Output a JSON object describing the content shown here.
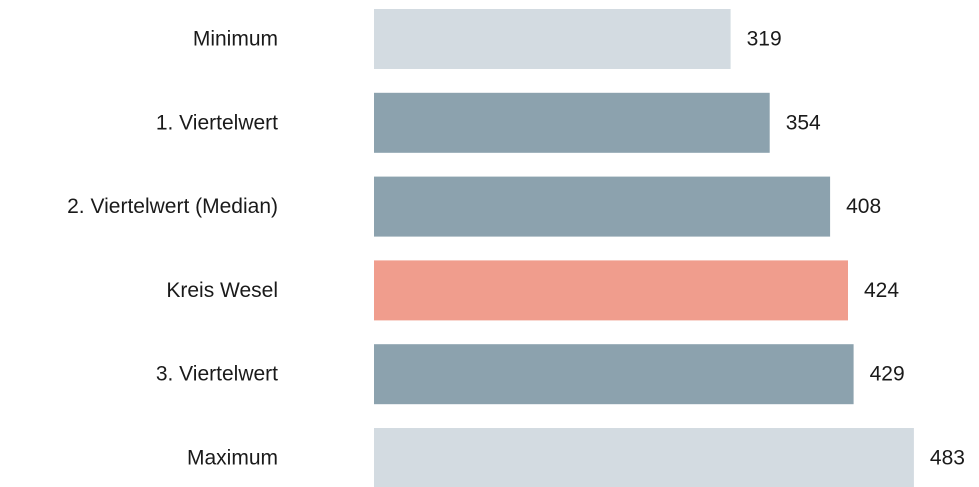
{
  "chart_data": {
    "type": "bar",
    "orientation": "horizontal",
    "categories": [
      "Minimum",
      "1. Viertelwert",
      "2. Viertelwert (Median)",
      "Kreis Wesel",
      "3. Viertelwert",
      "Maximum"
    ],
    "values": [
      319,
      354,
      408,
      424,
      429,
      483
    ],
    "value_labels": [
      "319",
      "354",
      "408",
      "424",
      "429",
      "483"
    ],
    "bar_colors": [
      "#d3dbe1",
      "#8ca2ae",
      "#8ca2ae",
      "#f09d8d",
      "#8ca2ae",
      "#d3dbe1"
    ],
    "title": "",
    "xlabel": "",
    "ylabel": "",
    "grid": false,
    "legend": "none"
  },
  "colors": {
    "extreme": "#d3dbe1",
    "quartile": "#8ca2ae",
    "highlight": "#f09d8d",
    "text": "#1a1a1a"
  }
}
